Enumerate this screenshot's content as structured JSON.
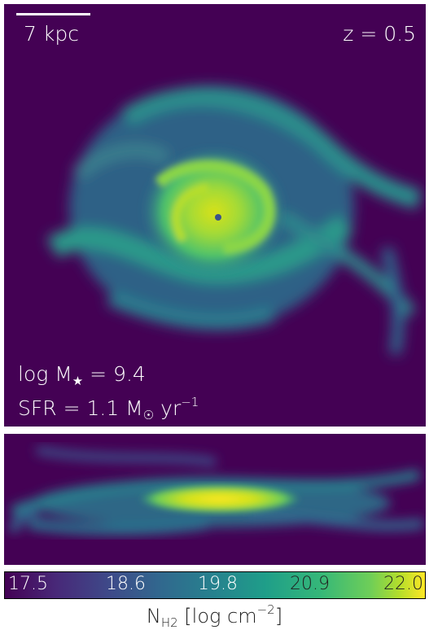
{
  "face_on": {
    "scale_label": "7 kpc",
    "redshift_label": "z = 0.5",
    "mass_prefix": "log M",
    "mass_sub": "★",
    "mass_value": " = 9.4",
    "sfr_prefix": "SFR = 1.1 M",
    "sfr_sub": "☉",
    "sfr_unit": " yr",
    "sfr_exp": "−1"
  },
  "colorbar": {
    "ticks": [
      "17.5",
      "18.6",
      "19.8",
      "20.9",
      "22.0"
    ],
    "label_main": "N",
    "label_sub": "H2",
    "label_unit": " [log cm",
    "label_exp": "−2",
    "label_close": "]",
    "colormap": [
      "#440154",
      "#3b528b",
      "#21918c",
      "#5ec962",
      "#fde725"
    ]
  }
}
